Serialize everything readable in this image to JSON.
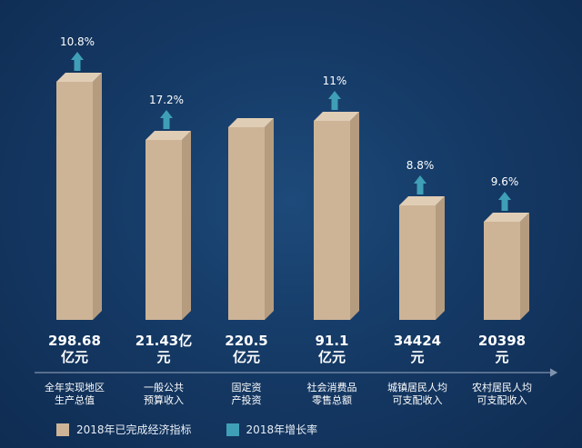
{
  "chart_data": {
    "type": "bar",
    "categories": [
      {
        "line1": "全年实现地区",
        "line2": "生产总值"
      },
      {
        "line1": "一般公共",
        "line2": "预算收入"
      },
      {
        "line1": "固定资",
        "line2": "产投资"
      },
      {
        "line1": "社会消费品",
        "line2": "零售总额"
      },
      {
        "line1": "城镇居民人均",
        "line2": "可支配收入"
      },
      {
        "line1": "农村居民人均",
        "line2": "可支配收入"
      }
    ],
    "value_labels": [
      {
        "line1": "298.68",
        "line2": "亿元"
      },
      {
        "line1": "21.43亿",
        "line2": "元"
      },
      {
        "line1": "220.5",
        "line2": "亿元"
      },
      {
        "line1": "91.1",
        "line2": "亿元"
      },
      {
        "line1": "34424",
        "line2": "元"
      },
      {
        "line1": "20398",
        "line2": "元"
      }
    ],
    "growth_labels": [
      "10.8%",
      "17.2%",
      "",
      "11%",
      "8.8%",
      "9.6%"
    ],
    "legend": {
      "bar": "2018年已完成经济指标",
      "arrow": "2018年增长率"
    },
    "colors": {
      "bar_front": "#cdb497",
      "bar_side": "#b59c7f",
      "bar_top": "#e0cdb5",
      "arrow": "#3f9fb6",
      "text": "#ffffff"
    }
  }
}
